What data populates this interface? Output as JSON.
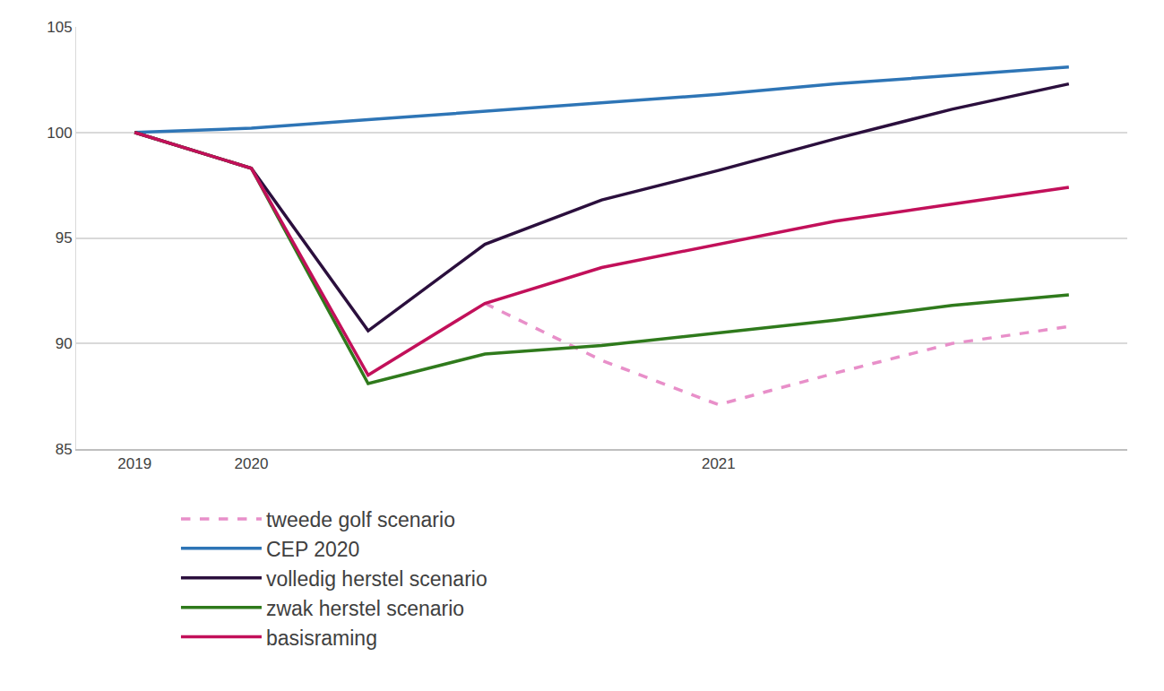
{
  "chart_data": {
    "type": "line",
    "categories": [
      "2019",
      "2020",
      null,
      null,
      null,
      "2021",
      null,
      null,
      null
    ],
    "series": [
      {
        "name": "tweede golf scenario",
        "color": "#e88fc9",
        "line_style": "dashed",
        "values": [
          null,
          null,
          null,
          91.9,
          89.2,
          87.1,
          88.6,
          90.0,
          90.8
        ]
      },
      {
        "name": "CEP 2020",
        "color": "#2e75b6",
        "line_style": "solid",
        "values": [
          100,
          100.2,
          100.6,
          101.0,
          101.4,
          101.8,
          102.3,
          102.7,
          103.1
        ]
      },
      {
        "name": "volledig herstel scenario",
        "color": "#2b0f3d",
        "line_style": "solid",
        "values": [
          100,
          98.3,
          90.6,
          94.7,
          96.8,
          98.2,
          99.7,
          101.1,
          102.3
        ]
      },
      {
        "name": "zwak herstel scenario",
        "color": "#2f7a1c",
        "line_style": "solid",
        "values": [
          100,
          98.3,
          88.1,
          89.5,
          89.9,
          90.5,
          91.1,
          91.8,
          92.3
        ]
      },
      {
        "name": "basisraming",
        "color": "#c2105a",
        "line_style": "solid",
        "values": [
          100,
          98.3,
          88.5,
          91.9,
          93.6,
          94.7,
          95.8,
          96.6,
          97.4
        ]
      }
    ],
    "ylim": [
      85,
      105
    ],
    "yticks": [
      85,
      90,
      95,
      100,
      105
    ],
    "grid": true,
    "legend": "bottom"
  }
}
